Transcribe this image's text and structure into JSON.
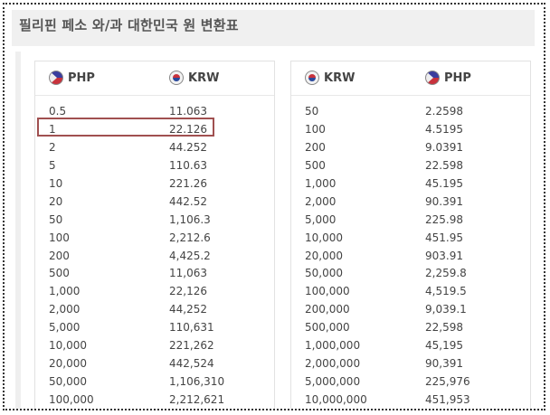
{
  "title": "필리핀 페소 와/과 대한민국 원 변환표",
  "colors": {
    "highlight": "#a05050",
    "header_bg": "#f0f0f0"
  },
  "left_table": {
    "col1": {
      "code": "PHP",
      "icon": "philippines-flag-icon"
    },
    "col2": {
      "code": "KRW",
      "icon": "korea-flag-icon"
    },
    "highlighted_row": 1,
    "rows": [
      [
        "0.5",
        "11.063"
      ],
      [
        "1",
        "22.126"
      ],
      [
        "2",
        "44.252"
      ],
      [
        "5",
        "110.63"
      ],
      [
        "10",
        "221.26"
      ],
      [
        "20",
        "442.52"
      ],
      [
        "50",
        "1,106.3"
      ],
      [
        "100",
        "2,212.6"
      ],
      [
        "200",
        "4,425.2"
      ],
      [
        "500",
        "11,063"
      ],
      [
        "1,000",
        "22,126"
      ],
      [
        "2,000",
        "44,252"
      ],
      [
        "5,000",
        "110,631"
      ],
      [
        "10,000",
        "221,262"
      ],
      [
        "20,000",
        "442,524"
      ],
      [
        "50,000",
        "1,106,310"
      ],
      [
        "100,000",
        "2,212,621"
      ]
    ]
  },
  "right_table": {
    "col1": {
      "code": "KRW",
      "icon": "korea-flag-icon"
    },
    "col2": {
      "code": "PHP",
      "icon": "philippines-flag-icon"
    },
    "rows": [
      [
        "50",
        "2.2598"
      ],
      [
        "100",
        "4.5195"
      ],
      [
        "200",
        "9.0391"
      ],
      [
        "500",
        "22.598"
      ],
      [
        "1,000",
        "45.195"
      ],
      [
        "2,000",
        "90.391"
      ],
      [
        "5,000",
        "225.98"
      ],
      [
        "10,000",
        "451.95"
      ],
      [
        "20,000",
        "903.91"
      ],
      [
        "50,000",
        "2,259.8"
      ],
      [
        "100,000",
        "4,519.5"
      ],
      [
        "200,000",
        "9,039.1"
      ],
      [
        "500,000",
        "22,598"
      ],
      [
        "1,000,000",
        "45,195"
      ],
      [
        "2,000,000",
        "90,391"
      ],
      [
        "5,000,000",
        "225,976"
      ],
      [
        "10,000,000",
        "451,953"
      ]
    ]
  }
}
